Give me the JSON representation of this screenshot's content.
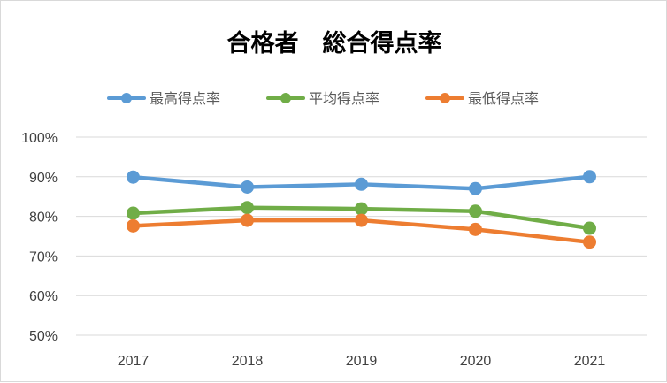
{
  "chart_data": {
    "type": "line",
    "title": "合格者　総合得点率",
    "categories": [
      "2017",
      "2018",
      "2019",
      "2020",
      "2021"
    ],
    "y_ticks": [
      "50%",
      "60%",
      "70%",
      "80%",
      "90%",
      "100%"
    ],
    "ylim": [
      50,
      100
    ],
    "grid": true,
    "legend_position": "top",
    "series": [
      {
        "name": "最高得点率",
        "color": "#5b9bd5",
        "values": [
          89.9,
          87.4,
          88.1,
          87.0,
          90.0
        ]
      },
      {
        "name": "平均得点率",
        "color": "#70ad47",
        "values": [
          80.8,
          82.2,
          81.9,
          81.3,
          77.0
        ]
      },
      {
        "name": "最低得点率",
        "color": "#ed7d31",
        "values": [
          77.6,
          79.0,
          79.0,
          76.7,
          73.5
        ]
      }
    ]
  }
}
